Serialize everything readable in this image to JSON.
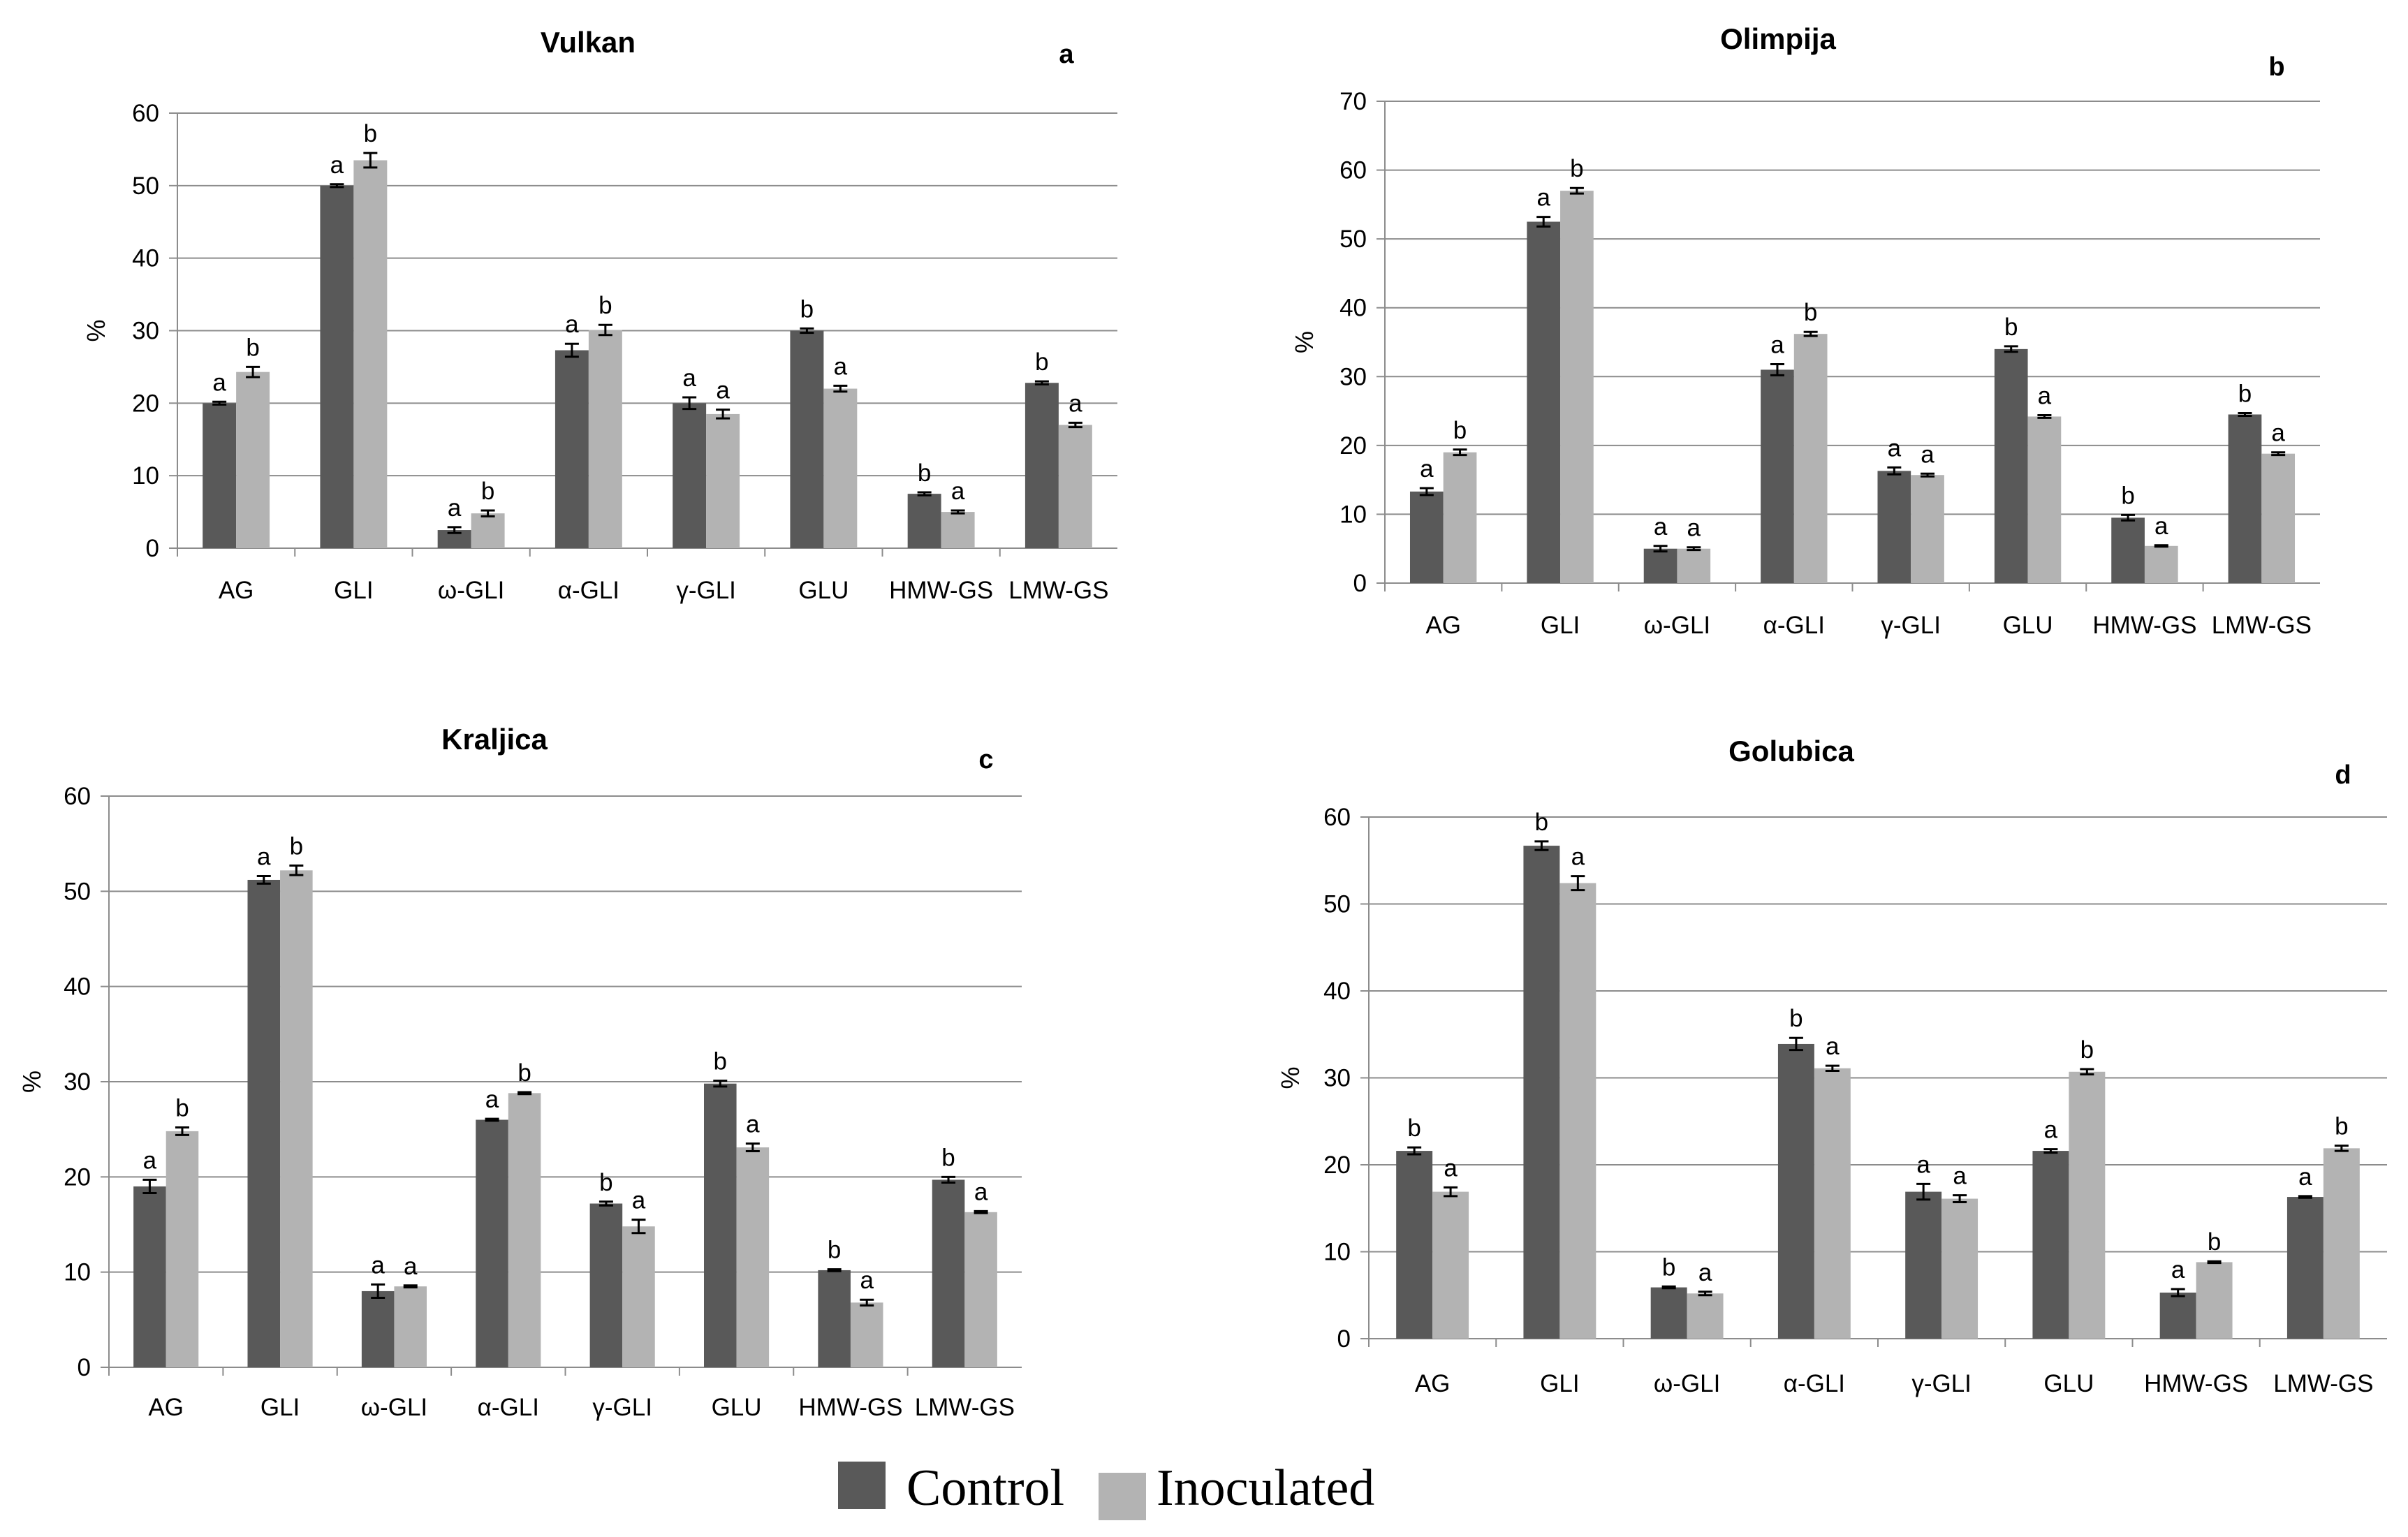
{
  "legend": {
    "entries": [
      {
        "label": "Control",
        "color": "#595959"
      },
      {
        "label": "Inoculated",
        "color": "#b3b3b3"
      }
    ]
  },
  "chart_data": [
    {
      "type": "bar",
      "title": "Vulkan",
      "panel": "a",
      "ylabel": "%",
      "xlabel": "",
      "ylim": [
        0,
        60
      ],
      "yticks": [
        0,
        10,
        20,
        30,
        40,
        50,
        60
      ],
      "grid": true,
      "categories": [
        "AG",
        "GLI",
        "ω-GLI",
        "α-GLI",
        "γ-GLI",
        "GLU",
        "HMW-GS",
        "LMW-GS"
      ],
      "series": [
        {
          "name": "Control",
          "values": [
            20.0,
            50.0,
            2.5,
            27.3,
            20.0,
            30.0,
            7.5,
            22.8
          ],
          "errors": [
            0.2,
            0.2,
            0.4,
            0.9,
            0.8,
            0.3,
            0.2,
            0.2
          ],
          "letters": [
            "a",
            "a",
            "a",
            "a",
            "a",
            "b",
            "b",
            "b"
          ]
        },
        {
          "name": "Inoculated",
          "values": [
            24.3,
            53.5,
            4.8,
            30.1,
            18.5,
            22.0,
            5.0,
            17.0
          ],
          "errors": [
            0.7,
            1.0,
            0.4,
            0.7,
            0.6,
            0.4,
            0.2,
            0.3
          ],
          "letters": [
            "b",
            "b",
            "b",
            "b",
            "a",
            "a",
            "a",
            "a"
          ]
        }
      ]
    },
    {
      "type": "bar",
      "title": "Olimpija",
      "panel": "b",
      "ylabel": "%",
      "xlabel": "",
      "ylim": [
        0,
        70
      ],
      "yticks": [
        0,
        10,
        20,
        30,
        40,
        50,
        60,
        70
      ],
      "grid": true,
      "categories": [
        "AG",
        "GLI",
        "ω-GLI",
        "α-GLI",
        "γ-GLI",
        "GLU",
        "HMW-GS",
        "LMW-GS"
      ],
      "series": [
        {
          "name": "Control",
          "values": [
            13.3,
            52.5,
            5.0,
            31.0,
            16.3,
            34.0,
            9.5,
            24.5
          ],
          "errors": [
            0.5,
            0.7,
            0.4,
            0.8,
            0.5,
            0.4,
            0.4,
            0.2
          ],
          "letters": [
            "a",
            "a",
            "a",
            "a",
            "a",
            "b",
            "b",
            "b"
          ]
        },
        {
          "name": "Inoculated",
          "values": [
            19.0,
            57.0,
            5.0,
            36.2,
            15.7,
            24.2,
            5.4,
            18.8
          ],
          "errors": [
            0.4,
            0.4,
            0.2,
            0.3,
            0.2,
            0.2,
            0.1,
            0.2
          ],
          "letters": [
            "b",
            "b",
            "a",
            "b",
            "a",
            "a",
            "a",
            "a"
          ]
        }
      ]
    },
    {
      "type": "bar",
      "title": "Kraljica",
      "panel": "c",
      "ylabel": "%",
      "xlabel": "",
      "ylim": [
        0,
        60
      ],
      "yticks": [
        0,
        10,
        20,
        30,
        40,
        50,
        60
      ],
      "grid": true,
      "categories": [
        "AG",
        "GLI",
        "ω-GLI",
        "α-GLI",
        "γ-GLI",
        "GLU",
        "HMW-GS",
        "LMW-GS"
      ],
      "series": [
        {
          "name": "Control",
          "values": [
            19.0,
            51.2,
            8.0,
            26.0,
            17.2,
            29.8,
            10.2,
            19.7
          ],
          "errors": [
            0.7,
            0.4,
            0.7,
            0.1,
            0.2,
            0.3,
            0.1,
            0.3
          ],
          "letters": [
            "a",
            "a",
            "a",
            "a",
            "b",
            "b",
            "b",
            "b"
          ]
        },
        {
          "name": "Inoculated",
          "values": [
            24.8,
            52.2,
            8.5,
            28.8,
            14.8,
            23.1,
            6.8,
            16.3
          ],
          "errors": [
            0.4,
            0.5,
            0.1,
            0.1,
            0.7,
            0.4,
            0.3,
            0.1
          ],
          "letters": [
            "b",
            "b",
            "a",
            "b",
            "a",
            "a",
            "a",
            "a"
          ]
        }
      ]
    },
    {
      "type": "bar",
      "title": "Golubica",
      "panel": "d",
      "ylabel": "%",
      "xlabel": "",
      "ylim": [
        0,
        60
      ],
      "yticks": [
        0,
        10,
        20,
        30,
        40,
        50,
        60
      ],
      "grid": true,
      "categories": [
        "AG",
        "GLI",
        "ω-GLI",
        "α-GLI",
        "γ-GLI",
        "GLU",
        "HMW-GS",
        "LMW-GS"
      ],
      "series": [
        {
          "name": "Control",
          "values": [
            21.6,
            56.7,
            5.9,
            33.9,
            16.9,
            21.6,
            5.3,
            16.3
          ],
          "errors": [
            0.4,
            0.5,
            0.1,
            0.7,
            0.9,
            0.2,
            0.4,
            0.1
          ],
          "letters": [
            "b",
            "b",
            "b",
            "b",
            "a",
            "a",
            "a",
            "a"
          ]
        },
        {
          "name": "Inoculated",
          "values": [
            16.9,
            52.4,
            5.2,
            31.1,
            16.1,
            30.7,
            8.8,
            21.9
          ],
          "errors": [
            0.5,
            0.8,
            0.2,
            0.3,
            0.4,
            0.3,
            0.1,
            0.3
          ],
          "letters": [
            "a",
            "a",
            "a",
            "a",
            "a",
            "b",
            "b",
            "b"
          ]
        }
      ]
    }
  ]
}
